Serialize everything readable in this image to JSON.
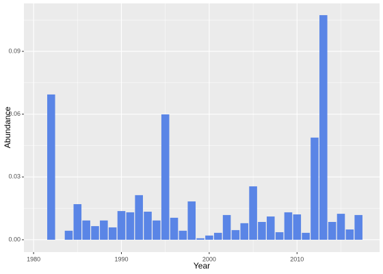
{
  "chart_data": {
    "type": "bar",
    "x_label": "Year",
    "y_label": "Abundance",
    "x": [
      1982,
      1984,
      1985,
      1986,
      1987,
      1988,
      1989,
      1990,
      1991,
      1992,
      1993,
      1994,
      1995,
      1996,
      1997,
      1998,
      1999,
      2000,
      2001,
      2002,
      2003,
      2004,
      2005,
      2006,
      2007,
      2008,
      2009,
      2010,
      2011,
      2012,
      2013,
      2014,
      2015,
      2016,
      2017
    ],
    "values": [
      0.0694,
      0.0043,
      0.017,
      0.0092,
      0.0065,
      0.0092,
      0.0059,
      0.0137,
      0.0131,
      0.0213,
      0.0134,
      0.0092,
      0.0599,
      0.0105,
      0.0043,
      0.0183,
      0.0007,
      0.002,
      0.0033,
      0.0118,
      0.0046,
      0.0079,
      0.0255,
      0.0085,
      0.0111,
      0.0036,
      0.0131,
      0.0121,
      0.0033,
      0.0488,
      0.1073,
      0.0085,
      0.0124,
      0.0049,
      0.0118
    ],
    "color": "#5a85e6",
    "xlim": [
      1978.9,
      2019.4
    ],
    "ylim": [
      -0.0059,
      0.1129
    ],
    "xticks": [
      1980,
      1990,
      2000,
      2010
    ],
    "yticks": [
      {
        "value": 0,
        "label": "0.00"
      },
      {
        "value": 0.03,
        "label": "0.03"
      },
      {
        "value": 0.06,
        "label": "0.06"
      },
      {
        "value": 0.09,
        "label": "0.09"
      }
    ],
    "x_minor_grid": [
      1985,
      1995,
      2005,
      2015
    ],
    "y_minor_grid": [
      0.015,
      0.045,
      0.075,
      0.105
    ],
    "grid": true
  }
}
